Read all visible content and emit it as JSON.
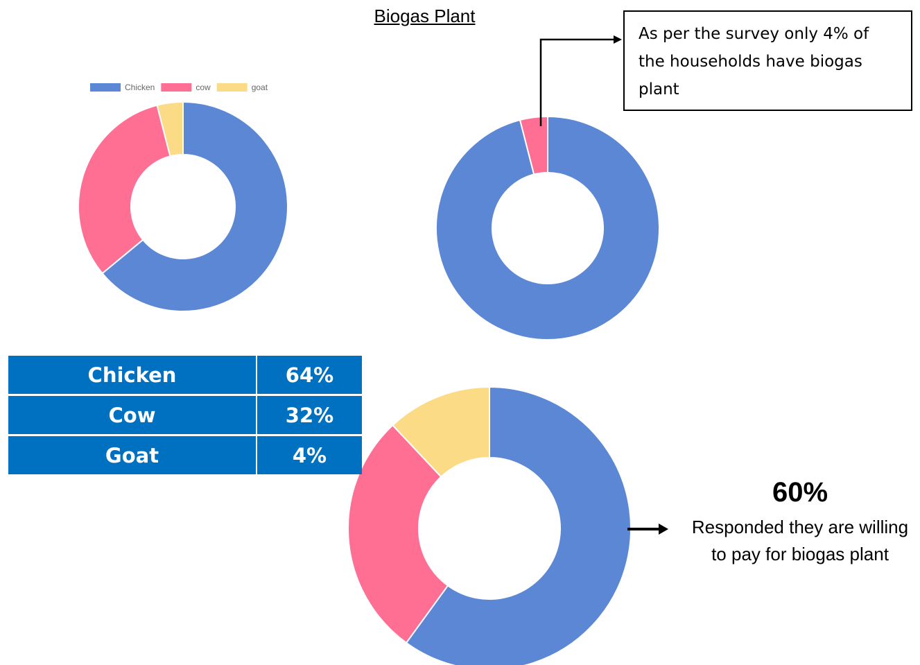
{
  "title": "Biogas Plant",
  "chart_data": [
    {
      "type": "donut",
      "categories": [
        "Chicken",
        "cow",
        "goat"
      ],
      "values": [
        64,
        32,
        4
      ],
      "colors": [
        "#5b87d4",
        "#ff6f94",
        "#fbdb86"
      ],
      "legend": "top"
    },
    {
      "type": "donut",
      "values": [
        96,
        4
      ],
      "colors": [
        "#5b87d4",
        "#ff6f94"
      ],
      "annotation": "As per the survey only 4% of the households have biogas plant"
    },
    {
      "type": "donut",
      "values": [
        60,
        28,
        12
      ],
      "value_labels": [
        "60%",
        null,
        null
      ],
      "colors": [
        "#5b87d4",
        "#ff6f94",
        "#fbdb86"
      ],
      "annotation": "Responded they are willing to pay for biogas plant"
    }
  ],
  "table": {
    "rows": [
      [
        "Chicken",
        "64%"
      ],
      [
        "Cow",
        "32%"
      ],
      [
        "Goat",
        "4%"
      ]
    ]
  }
}
